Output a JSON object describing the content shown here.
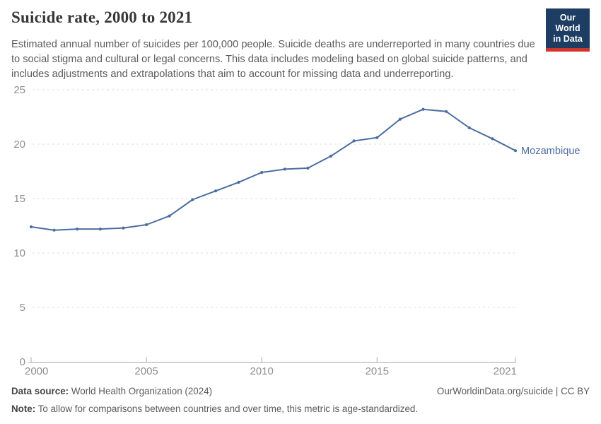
{
  "header": {
    "title": "Suicide rate, 2000 to 2021",
    "subtitle": "Estimated annual number of suicides per 100,000 people. Suicide deaths are underreported in many countries due to social stigma and cultural or legal concerns. This data includes modeling based on global suicide patterns, and includes adjustments and extrapolations that aim to account for missing data and underreporting.",
    "logo": {
      "line1": "Our World",
      "line2": "in Data",
      "bg_color": "#1d3d63",
      "accent_color": "#d0342c"
    }
  },
  "chart_data": {
    "type": "line",
    "title": "Suicide rate, 2000 to 2021",
    "xlabel": "",
    "ylabel": "",
    "xlim": [
      2000,
      2021
    ],
    "ylim": [
      0,
      25
    ],
    "x_ticks": [
      2000,
      2005,
      2010,
      2015,
      2021
    ],
    "y_ticks": [
      0,
      5,
      10,
      15,
      20,
      25
    ],
    "grid": "horizontal-dashed",
    "legend_position": "end-of-line-label",
    "x": [
      2000,
      2001,
      2002,
      2003,
      2004,
      2005,
      2006,
      2007,
      2008,
      2009,
      2010,
      2011,
      2012,
      2013,
      2014,
      2015,
      2016,
      2017,
      2018,
      2019,
      2020,
      2021
    ],
    "series": [
      {
        "name": "Mozambique",
        "color": "#4c6da0",
        "values": [
          12.4,
          12.1,
          12.2,
          12.2,
          12.3,
          12.6,
          13.4,
          14.9,
          15.7,
          16.5,
          17.4,
          17.7,
          17.8,
          18.9,
          20.3,
          20.6,
          22.3,
          23.2,
          23.0,
          21.5,
          20.5,
          19.4
        ]
      }
    ],
    "colors": {
      "gridline": "#dcdcdc",
      "axis_line": "#a8a8a8",
      "tick_label": "#8e8e8e"
    }
  },
  "footer": {
    "source_label": "Data source:",
    "source_text": "World Health Organization (2024)",
    "attribution": "OurWorldinData.org/suicide | CC BY",
    "note_label": "Note:",
    "note_text": "To allow for comparisons between countries and over time, this metric is age-standardized."
  }
}
